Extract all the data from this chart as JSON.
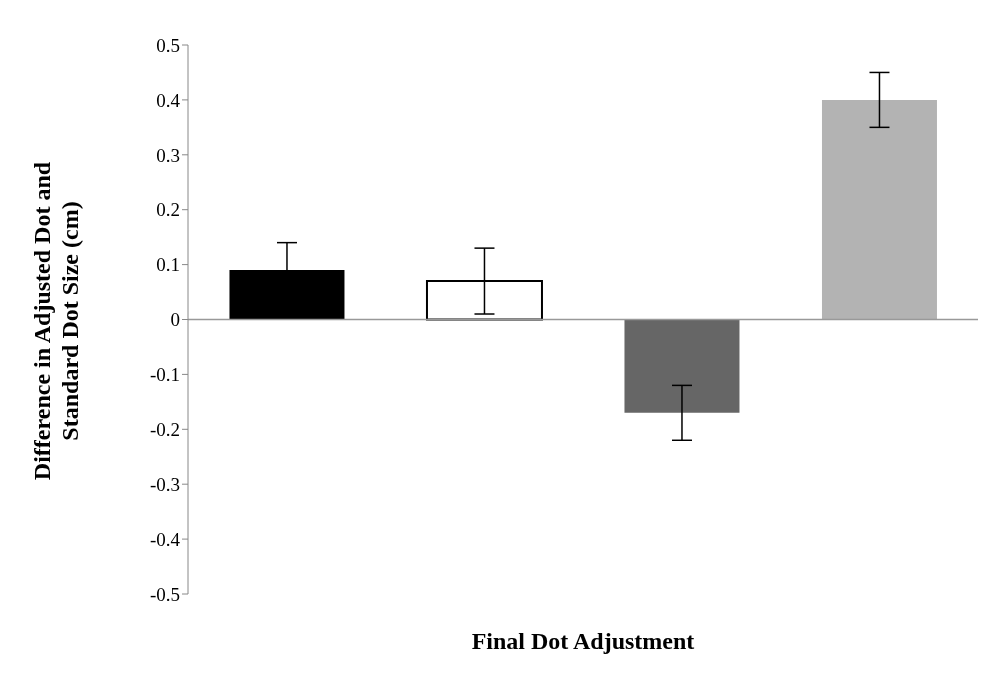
{
  "chart_data": {
    "type": "bar",
    "xlabel": "Final Dot Adjustment",
    "ylabel": "Difference in Adjusted Dot and Standard Dot Size (cm)",
    "categories": [
      null,
      null,
      null,
      null
    ],
    "values": [
      0.09,
      0.07,
      -0.17,
      0.4
    ],
    "errors": [
      0.05,
      0.06,
      0.05,
      0.05
    ],
    "colors": [
      "#000000",
      "#ffffff",
      "#666666",
      "#b3b3b3"
    ],
    "ylim": [
      -0.5,
      0.5
    ],
    "yticks": [
      -0.5,
      -0.4,
      -0.3,
      -0.2,
      -0.1,
      0,
      0.1,
      0.2,
      0.3,
      0.4,
      0.5
    ],
    "ref_lines": [
      {
        "axis": "y",
        "value": 0,
        "color": "#999999"
      }
    ]
  }
}
